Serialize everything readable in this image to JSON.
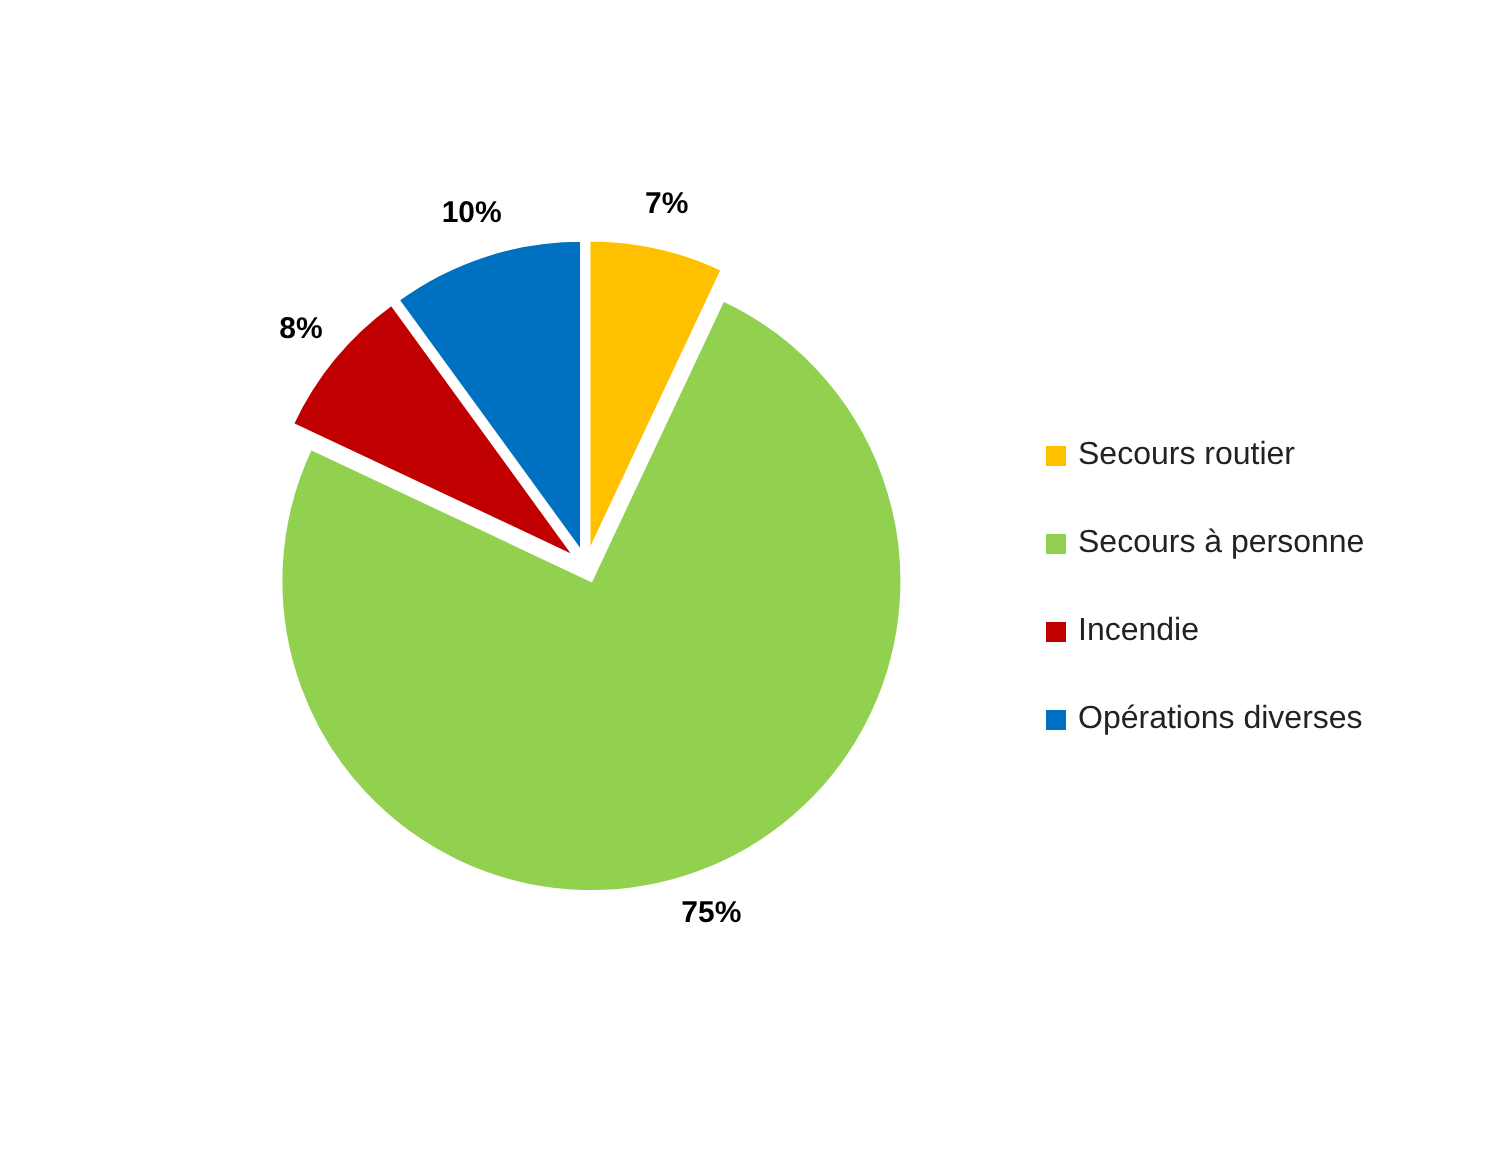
{
  "chart_data": {
    "type": "pie",
    "categories": [
      "Secours routier",
      "Secours à personne",
      "Incendie",
      "Opérations diverses"
    ],
    "values": [
      7,
      75,
      8,
      10
    ],
    "colors": [
      "#ffc000",
      "#92d050",
      "#c00000",
      "#0070c0"
    ],
    "value_labels": [
      "7%",
      "75%",
      "8%",
      "10%"
    ],
    "legend": "right"
  }
}
